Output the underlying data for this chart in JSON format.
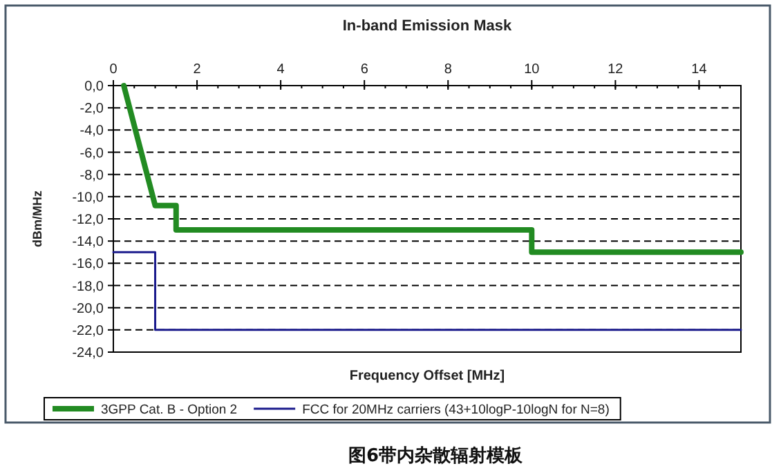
{
  "chart_data": {
    "type": "line",
    "title": "In-band Emission Mask",
    "xlabel": "Frequency Offset [MHz]",
    "ylabel": "dBm/MHz",
    "xlim": [
      0,
      15
    ],
    "xticks": [
      0,
      2,
      4,
      6,
      8,
      10,
      12,
      14
    ],
    "ylim": [
      -24,
      0
    ],
    "yticks": [
      {
        "value": 0,
        "label": "0,0"
      },
      {
        "value": -2,
        "label": "-2,0"
      },
      {
        "value": -4,
        "label": "-4,0"
      },
      {
        "value": -6,
        "label": "-6,0"
      },
      {
        "value": -8,
        "label": "-8,0"
      },
      {
        "value": -10,
        "label": "-10,0"
      },
      {
        "value": -12,
        "label": "-12,0"
      },
      {
        "value": -14,
        "label": "-14,0"
      },
      {
        "value": -16,
        "label": "-16,0"
      },
      {
        "value": -18,
        "label": "-18,0"
      },
      {
        "value": -20,
        "label": "-20,0"
      },
      {
        "value": -22,
        "label": "-22,0"
      },
      {
        "value": -24,
        "label": "-24,0"
      }
    ],
    "grid": "y",
    "legend": "bottom",
    "line_style": "solid",
    "series": [
      {
        "name": "3GPP Cat. B - Option 2",
        "color": "#228b22",
        "x": [
          0.25,
          1,
          1.5,
          1.5,
          10,
          10,
          15
        ],
        "values": [
          0,
          -10.8,
          -10.8,
          -13,
          -13,
          -15,
          -15
        ]
      },
      {
        "name": "FCC for 20MHz carriers (43+10logP-10logN for N=8)",
        "color": "#1a1a8c",
        "x": [
          0,
          1,
          1,
          15
        ],
        "values": [
          -15,
          -15,
          -22,
          -22
        ]
      }
    ],
    "annotations": [
      "图6带内杂散辐射模板"
    ]
  }
}
